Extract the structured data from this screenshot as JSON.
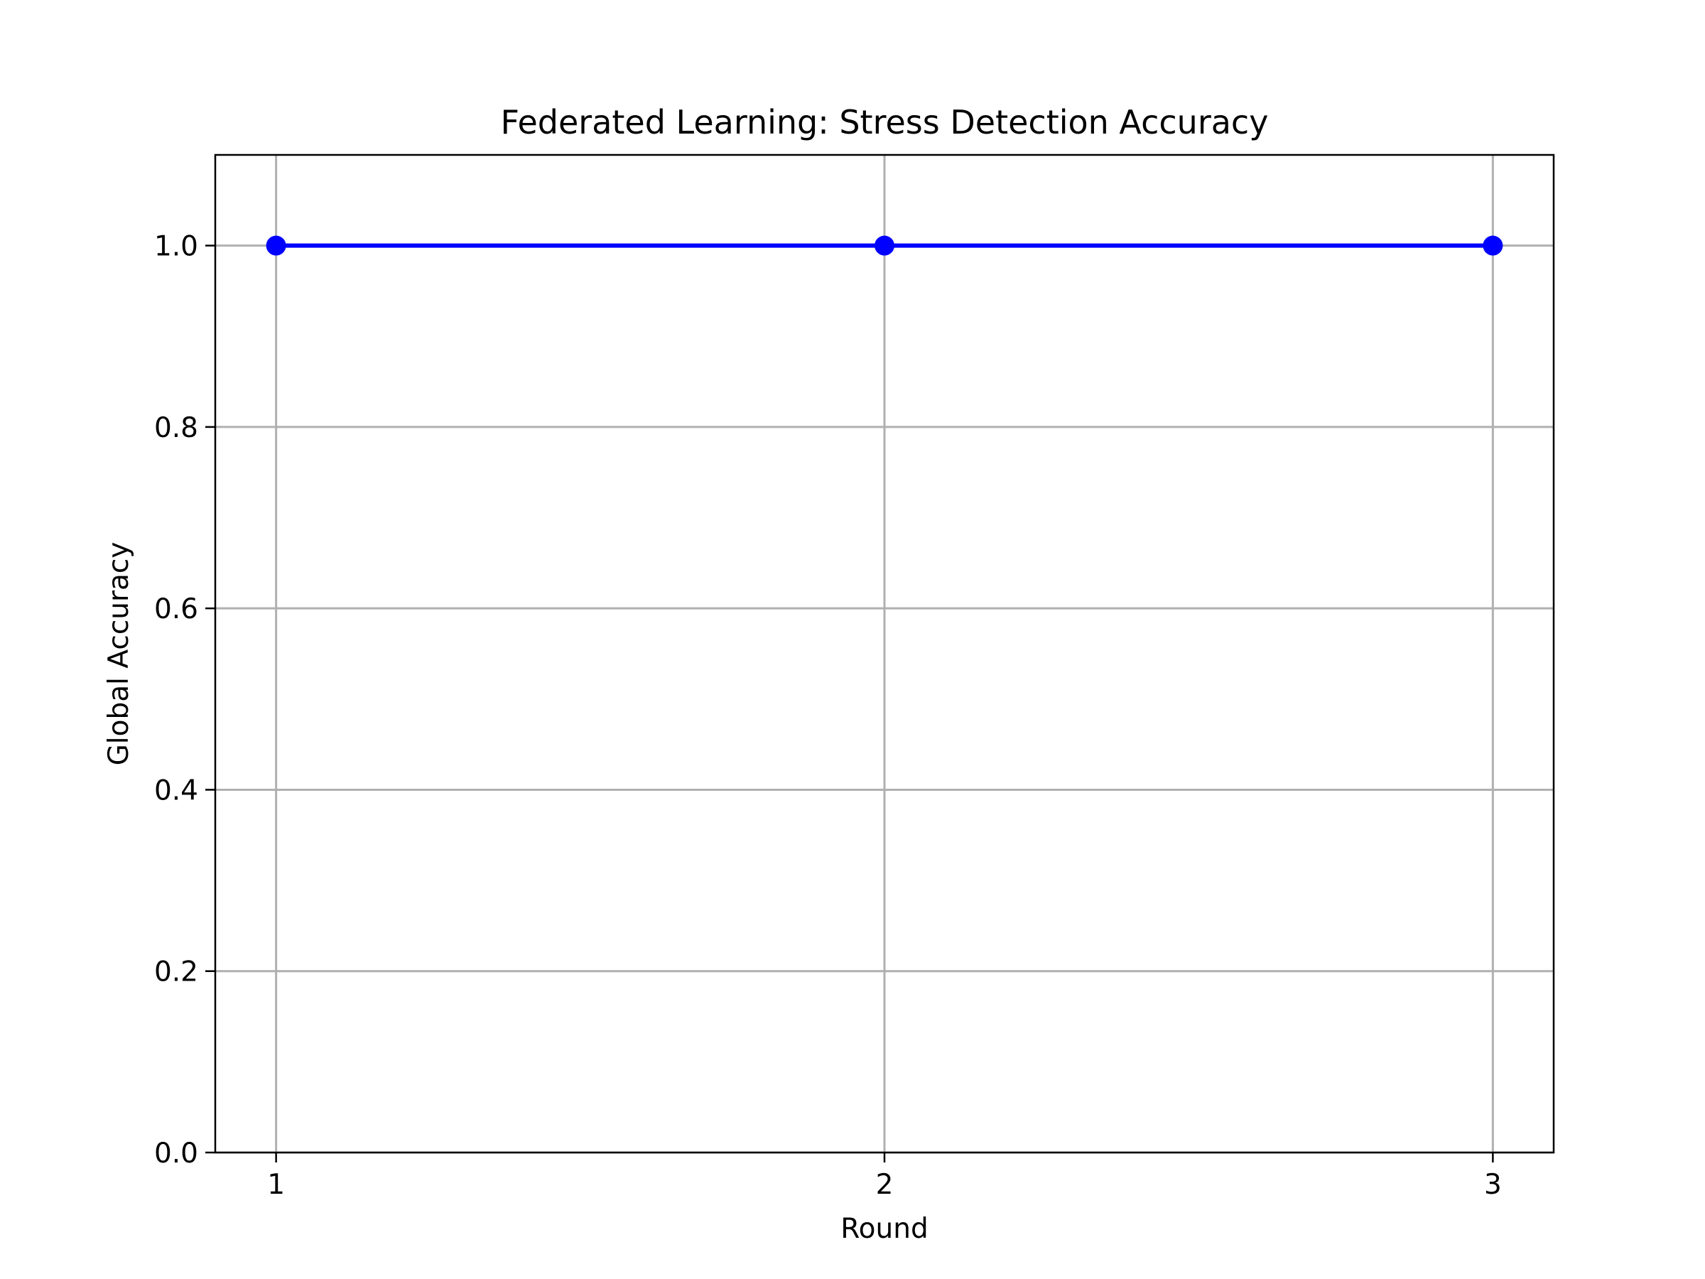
{
  "chart_data": {
    "type": "line",
    "title": "Federated Learning: Stress Detection Accuracy",
    "xlabel": "Round",
    "ylabel": "Global Accuracy",
    "x": [
      1,
      2,
      3
    ],
    "x_tick_labels": [
      "1",
      "2",
      "3"
    ],
    "y_ticks": [
      0.0,
      0.2,
      0.4,
      0.6,
      0.8,
      1.0
    ],
    "y_tick_labels": [
      "0.0",
      "0.2",
      "0.4",
      "0.6",
      "0.8",
      "1.0"
    ],
    "xlim": [
      0.9,
      3.1
    ],
    "ylim": [
      0.0,
      1.1
    ],
    "grid": true,
    "series": [
      {
        "values": [
          1.0,
          1.0,
          1.0
        ],
        "color": "#0000ff",
        "marker": "circle"
      }
    ]
  }
}
